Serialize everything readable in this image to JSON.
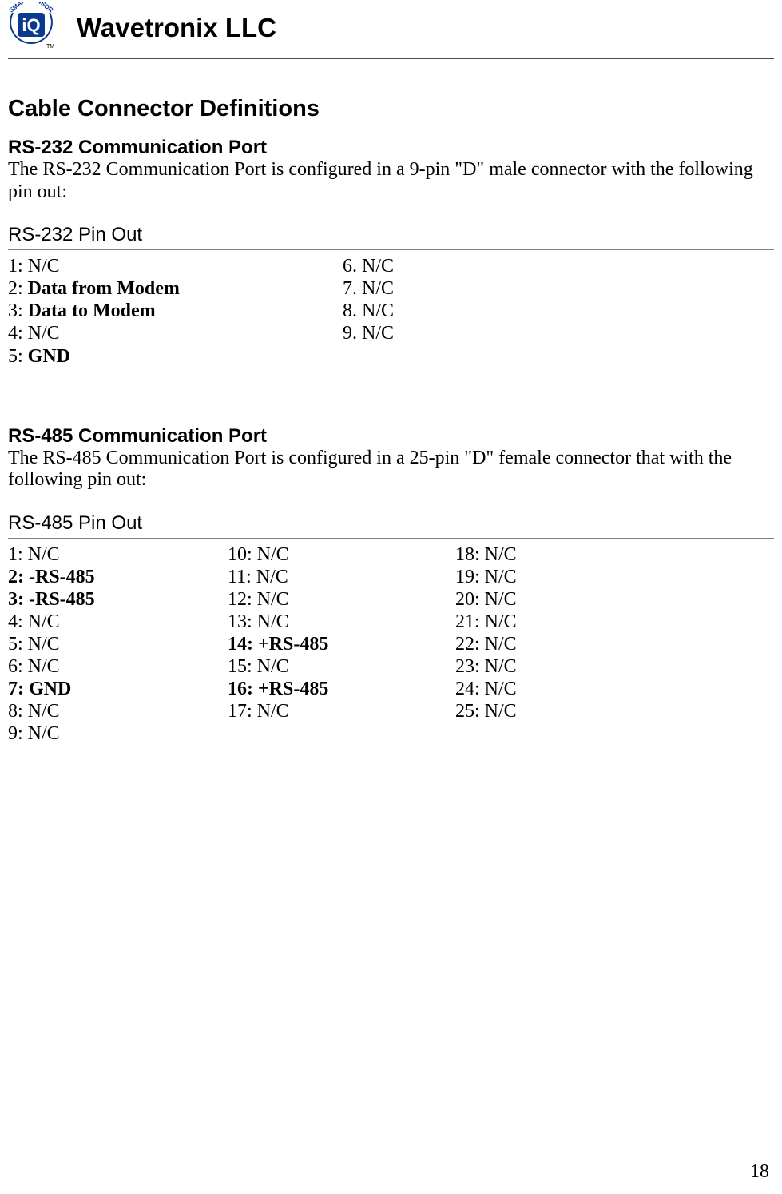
{
  "header": {
    "company": "Wavetronix LLC",
    "logo": {
      "name": "smart-sensor-iq-logo",
      "bg_color": "#ffffff",
      "arc_color": "#0a3a8f",
      "text_color": "#0a3a8f",
      "iq_bg": "#0a3a8f",
      "iq_text": "#ffffff",
      "tm": "TM"
    },
    "rule_color": "#4b4b4b"
  },
  "page_number": "18",
  "title": "Cable Connector Definitions",
  "rs232": {
    "heading": "RS-232 Communication Port",
    "desc": "The RS-232 Communication Port is configured in a 9-pin \"D\" male connector with the following pin out:",
    "subhead": "RS-232 Pin Out",
    "col1": [
      {
        "n": "1:",
        "v": "N/C",
        "bold": false
      },
      {
        "n": "2:",
        "v": "Data from Modem",
        "bold": true
      },
      {
        "n": "3:",
        "v": "Data to Modem",
        "bold": true
      },
      {
        "n": "4:",
        "v": "N/C",
        "bold": false
      },
      {
        "n": "5:",
        "v": "GND",
        "bold": true
      }
    ],
    "col2": [
      {
        "n": "6.",
        "v": "N/C",
        "bold": false
      },
      {
        "n": "7.",
        "v": "N/C",
        "bold": false
      },
      {
        "n": "8.",
        "v": "N/C",
        "bold": false
      },
      {
        "n": "9.",
        "v": "N/C",
        "bold": false
      }
    ]
  },
  "rs485": {
    "heading": "RS-485 Communication Port",
    "desc": "The RS-485 Communication Port is configured in a 25-pin \"D\" female connector that with the following pin out:",
    "subhead": "RS-485 Pin Out",
    "col1": [
      {
        "n": "1:",
        "v": "N/C",
        "bold": false
      },
      {
        "n": "2:",
        "v": "-RS-485",
        "bold": true,
        "nboldfull": true
      },
      {
        "n": "3:",
        "v": "-RS-485",
        "bold": true,
        "nboldfull": true
      },
      {
        "n": "4:",
        "v": "N/C",
        "bold": false
      },
      {
        "n": "5:",
        "v": "N/C",
        "bold": false
      },
      {
        "n": "6:",
        "v": "N/C",
        "bold": false
      },
      {
        "n": "7:",
        "v": "GND",
        "bold": true,
        "nboldfull": true
      },
      {
        "n": "8:",
        "v": "N/C",
        "bold": false
      },
      {
        "n": "9:",
        "v": "N/C",
        "bold": false
      }
    ],
    "col2": [
      {
        "n": "10:",
        "v": "N/C",
        "bold": false
      },
      {
        "n": "11:",
        "v": "N/C",
        "bold": false
      },
      {
        "n": "12:",
        "v": "N/C",
        "bold": false
      },
      {
        "n": "13:",
        "v": "N/C",
        "bold": false
      },
      {
        "n": "14:",
        "v": "+RS-485",
        "bold": true,
        "nboldfull": true
      },
      {
        "n": "15:",
        "v": "N/C",
        "bold": false
      },
      {
        "n": "16:",
        "v": "+RS-485",
        "bold": true,
        "nboldfull": true
      },
      {
        "n": "17:",
        "v": "N/C",
        "bold": false
      }
    ],
    "col3": [
      {
        "n": "18:",
        "v": "N/C",
        "bold": false
      },
      {
        "n": "19:",
        "v": "N/C",
        "bold": false
      },
      {
        "n": "20:",
        "v": "N/C",
        "bold": false
      },
      {
        "n": "21:",
        "v": "N/C",
        "bold": false
      },
      {
        "n": "22:",
        "v": "N/C",
        "bold": false
      },
      {
        "n": "23:",
        "v": "N/C",
        "bold": false
      },
      {
        "n": "24:",
        "v": "N/C",
        "bold": false
      },
      {
        "n": "25:",
        "v": "N/C",
        "bold": false
      }
    ]
  }
}
